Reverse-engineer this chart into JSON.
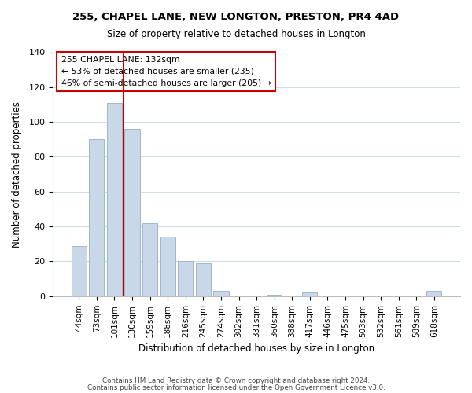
{
  "title": "255, CHAPEL LANE, NEW LONGTON, PRESTON, PR4 4AD",
  "subtitle": "Size of property relative to detached houses in Longton",
  "xlabel": "Distribution of detached houses by size in Longton",
  "ylabel": "Number of detached properties",
  "bar_labels": [
    "44sqm",
    "73sqm",
    "101sqm",
    "130sqm",
    "159sqm",
    "188sqm",
    "216sqm",
    "245sqm",
    "274sqm",
    "302sqm",
    "331sqm",
    "360sqm",
    "388sqm",
    "417sqm",
    "446sqm",
    "475sqm",
    "503sqm",
    "532sqm",
    "561sqm",
    "589sqm",
    "618sqm"
  ],
  "bar_values": [
    29,
    90,
    111,
    96,
    42,
    34,
    20,
    19,
    3,
    0,
    0,
    1,
    0,
    2,
    0,
    0,
    0,
    0,
    0,
    0,
    3
  ],
  "bar_color": "#c8d8e8",
  "bar_edge_color": "#a0b8cc",
  "ylim": [
    0,
    140
  ],
  "yticks": [
    0,
    20,
    40,
    60,
    80,
    100,
    120,
    140
  ],
  "vline_x_index": 3,
  "vline_color": "#cc0000",
  "annotation_title": "255 CHAPEL LANE: 132sqm",
  "annotation_line1": "← 53% of detached houses are smaller (235)",
  "annotation_line2": "46% of semi-detached houses are larger (205) →",
  "annotation_box_color": "#ffffff",
  "annotation_box_edge": "#cc0000",
  "footer1": "Contains HM Land Registry data © Crown copyright and database right 2024.",
  "footer2": "Contains public sector information licensed under the Open Government Licence v3.0.",
  "background_color": "#ffffff",
  "grid_color": "#d0dce8"
}
